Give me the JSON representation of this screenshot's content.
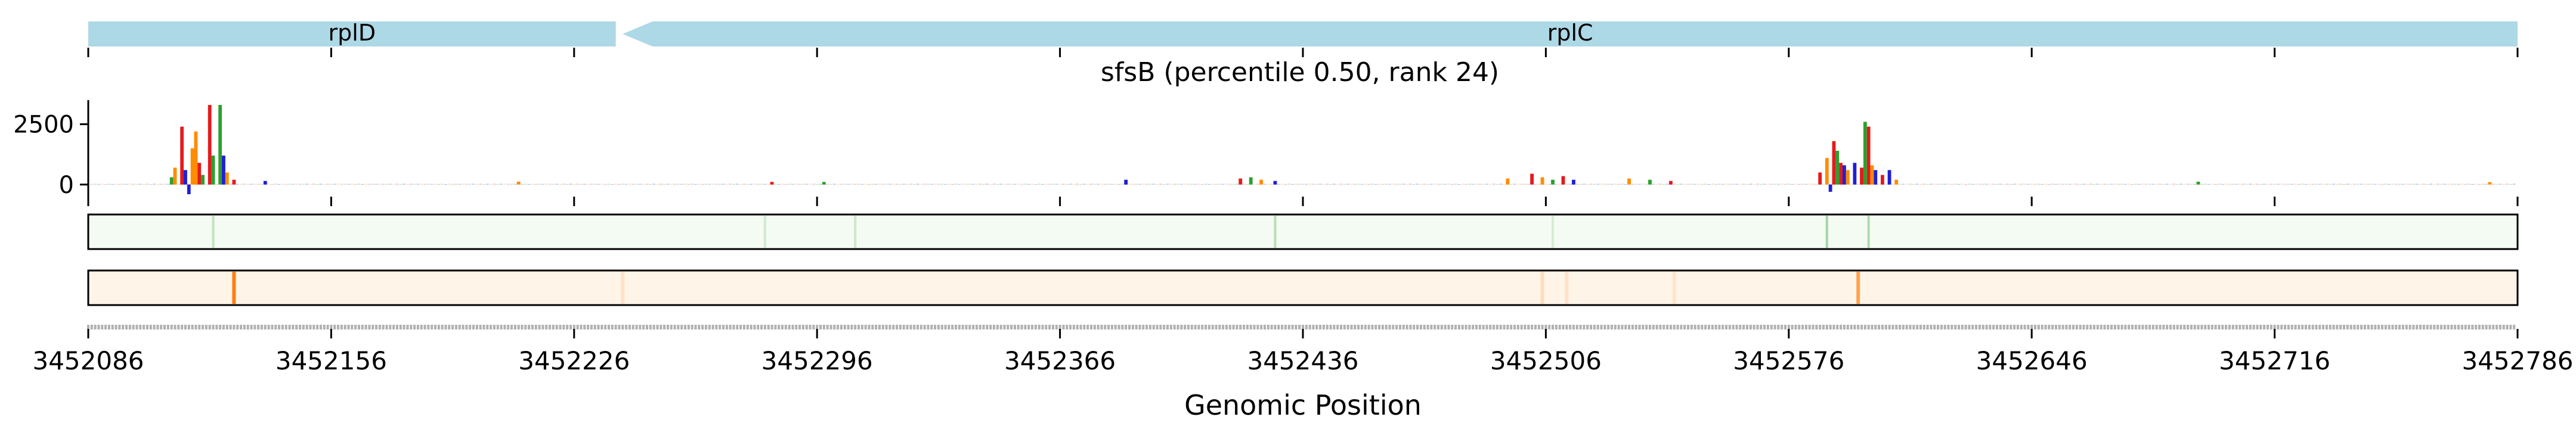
{
  "colors": {
    "gene": "#add8e6",
    "base_A": "#2ca02c",
    "base_C": "#1f1fd6",
    "base_G": "#ff8c00",
    "base_T": "#e31a1c",
    "track_green": "#2ca02c",
    "track_orange": "#ff7f0e",
    "track_green_bg": "#f4fbf2",
    "track_orange_bg": "#fff4e8"
  },
  "genes": [
    {
      "name": "rplD",
      "start": 3452086,
      "end": 3452238,
      "strand": "+"
    },
    {
      "name": "rplC",
      "start": 3452240,
      "end": 3452786,
      "strand": "-"
    }
  ],
  "chart_data": {
    "type": "bar",
    "title": "sfsB (percentile 0.50, rank 24)",
    "xlabel": "Genomic Position",
    "ylabel": "",
    "xlim": [
      3452086,
      3452786
    ],
    "ylim": [
      -500,
      3500
    ],
    "x_ticks": [
      3452086,
      3452156,
      3452226,
      3452296,
      3452366,
      3452436,
      3452506,
      3452576,
      3452646,
      3452716,
      3452786
    ],
    "y_ticks": [
      0,
      2500
    ],
    "peaks": [
      {
        "x": 3452110,
        "value": 300,
        "base": "A"
      },
      {
        "x": 3452111,
        "value": 700,
        "base": "G"
      },
      {
        "x": 3452113,
        "value": 2400,
        "base": "T"
      },
      {
        "x": 3452114,
        "value": 600,
        "base": "C"
      },
      {
        "x": 3452115,
        "value": -400,
        "base": "C"
      },
      {
        "x": 3452116,
        "value": 1500,
        "base": "G"
      },
      {
        "x": 3452117,
        "value": 2200,
        "base": "G"
      },
      {
        "x": 3452118,
        "value": 900,
        "base": "T"
      },
      {
        "x": 3452119,
        "value": 400,
        "base": "A"
      },
      {
        "x": 3452121,
        "value": 3300,
        "base": "T"
      },
      {
        "x": 3452122,
        "value": 1200,
        "base": "A"
      },
      {
        "x": 3452124,
        "value": 3300,
        "base": "A"
      },
      {
        "x": 3452125,
        "value": 1200,
        "base": "C"
      },
      {
        "x": 3452126,
        "value": 500,
        "base": "G"
      },
      {
        "x": 3452128,
        "value": 200,
        "base": "T"
      },
      {
        "x": 3452137,
        "value": 150,
        "base": "C"
      },
      {
        "x": 3452210,
        "value": 120,
        "base": "G"
      },
      {
        "x": 3452283,
        "value": 110,
        "base": "T"
      },
      {
        "x": 3452298,
        "value": 110,
        "base": "A"
      },
      {
        "x": 3452385,
        "value": 200,
        "base": "C"
      },
      {
        "x": 3452418,
        "value": 250,
        "base": "T"
      },
      {
        "x": 3452421,
        "value": 300,
        "base": "A"
      },
      {
        "x": 3452424,
        "value": 200,
        "base": "G"
      },
      {
        "x": 3452428,
        "value": 150,
        "base": "C"
      },
      {
        "x": 3452495,
        "value": 250,
        "base": "G"
      },
      {
        "x": 3452502,
        "value": 450,
        "base": "T"
      },
      {
        "x": 3452505,
        "value": 300,
        "base": "G"
      },
      {
        "x": 3452508,
        "value": 200,
        "base": "A"
      },
      {
        "x": 3452511,
        "value": 350,
        "base": "T"
      },
      {
        "x": 3452514,
        "value": 200,
        "base": "C"
      },
      {
        "x": 3452530,
        "value": 250,
        "base": "G"
      },
      {
        "x": 3452536,
        "value": 200,
        "base": "A"
      },
      {
        "x": 3452542,
        "value": 150,
        "base": "T"
      },
      {
        "x": 3452585,
        "value": 500,
        "base": "T"
      },
      {
        "x": 3452587,
        "value": 1100,
        "base": "G"
      },
      {
        "x": 3452588,
        "value": -300,
        "base": "C"
      },
      {
        "x": 3452589,
        "value": 1800,
        "base": "T"
      },
      {
        "x": 3452590,
        "value": 1400,
        "base": "A"
      },
      {
        "x": 3452591,
        "value": 900,
        "base": "T"
      },
      {
        "x": 3452592,
        "value": 800,
        "base": "C"
      },
      {
        "x": 3452593,
        "value": 600,
        "base": "G"
      },
      {
        "x": 3452595,
        "value": 900,
        "base": "C"
      },
      {
        "x": 3452597,
        "value": 700,
        "base": "T"
      },
      {
        "x": 3452598,
        "value": 2600,
        "base": "A"
      },
      {
        "x": 3452599,
        "value": 2400,
        "base": "T"
      },
      {
        "x": 3452600,
        "value": 800,
        "base": "G"
      },
      {
        "x": 3452601,
        "value": 600,
        "base": "C"
      },
      {
        "x": 3452603,
        "value": 400,
        "base": "T"
      },
      {
        "x": 3452605,
        "value": 600,
        "base": "C"
      },
      {
        "x": 3452607,
        "value": 200,
        "base": "G"
      },
      {
        "x": 3452694,
        "value": 120,
        "base": "A"
      },
      {
        "x": 3452778,
        "value": 100,
        "base": "G"
      }
    ],
    "track_green_lines": [
      {
        "x": 3452122,
        "strength": 0.25
      },
      {
        "x": 3452281,
        "strength": 0.18
      },
      {
        "x": 3452307,
        "strength": 0.2
      },
      {
        "x": 3452428,
        "strength": 0.3
      },
      {
        "x": 3452508,
        "strength": 0.15
      },
      {
        "x": 3452587,
        "strength": 0.4
      },
      {
        "x": 3452599,
        "strength": 0.35
      }
    ],
    "track_orange_lines": [
      {
        "x": 3452128,
        "strength": 1.0
      },
      {
        "x": 3452240,
        "strength": 0.15
      },
      {
        "x": 3452505,
        "strength": 0.2
      },
      {
        "x": 3452512,
        "strength": 0.15
      },
      {
        "x": 3452543,
        "strength": 0.12
      },
      {
        "x": 3452596,
        "strength": 0.7
      }
    ]
  }
}
